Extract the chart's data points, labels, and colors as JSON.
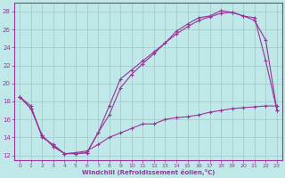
{
  "xlabel": "Windchill (Refroidissement éolien,°C)",
  "ylabel": "",
  "xlim": [
    -0.5,
    23.5
  ],
  "ylim": [
    11.5,
    29
  ],
  "xticks": [
    0,
    1,
    2,
    3,
    4,
    5,
    6,
    7,
    8,
    9,
    10,
    11,
    12,
    13,
    14,
    15,
    16,
    17,
    18,
    19,
    20,
    21,
    22,
    23
  ],
  "yticks": [
    12,
    14,
    16,
    18,
    20,
    22,
    24,
    26,
    28
  ],
  "bg_color": "#c0e8e8",
  "grid_color": "#a0c8c8",
  "line_color": "#993399",
  "curve1_x": [
    0,
    1,
    2,
    3,
    4,
    5,
    6,
    7,
    8,
    9,
    10,
    11,
    12,
    13,
    14,
    15,
    16,
    17,
    18,
    19,
    20,
    21,
    22,
    23
  ],
  "curve1_y": [
    18.5,
    17.2,
    14.2,
    13.0,
    12.2,
    12.2,
    12.3,
    14.5,
    16.5,
    19.5,
    21.0,
    22.2,
    23.3,
    24.5,
    25.8,
    26.6,
    27.3,
    27.5,
    28.1,
    27.9,
    27.5,
    27.3,
    22.5,
    17.0
  ],
  "curve2_x": [
    0,
    1,
    2,
    3,
    4,
    5,
    6,
    7,
    8,
    9,
    10,
    11,
    12,
    13,
    14,
    15,
    16,
    17,
    18,
    19,
    20,
    21,
    22,
    23
  ],
  "curve2_y": [
    18.5,
    17.2,
    14.2,
    13.0,
    12.2,
    12.2,
    12.3,
    14.5,
    17.5,
    20.5,
    21.5,
    22.5,
    23.5,
    24.5,
    25.5,
    26.3,
    27.0,
    27.4,
    27.8,
    27.9,
    27.5,
    27.0,
    24.8,
    17.0
  ],
  "curve3_x": [
    0,
    1,
    2,
    3,
    4,
    5,
    6,
    7,
    8,
    9,
    10,
    11,
    12,
    13,
    14,
    15,
    16,
    17,
    18,
    19,
    20,
    21,
    22,
    23
  ],
  "curve3_y": [
    18.5,
    17.5,
    14.0,
    13.2,
    12.2,
    12.3,
    12.5,
    13.2,
    14.0,
    14.5,
    15.0,
    15.5,
    15.5,
    16.0,
    16.2,
    16.3,
    16.5,
    16.8,
    17.0,
    17.2,
    17.3,
    17.4,
    17.5,
    17.5
  ]
}
